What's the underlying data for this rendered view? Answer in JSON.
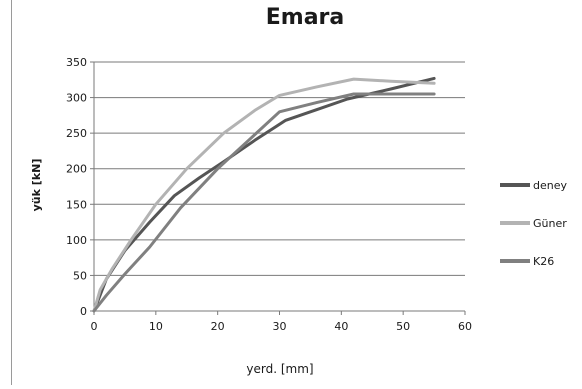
{
  "chart_data": {
    "type": "line",
    "title": "Emara",
    "xlabel": "yerd. [mm]",
    "ylabel": "yük [kN]",
    "xlim": [
      0,
      60
    ],
    "ylim": [
      0,
      350
    ],
    "xticks": [
      0,
      10,
      20,
      30,
      40,
      50,
      60
    ],
    "yticks": [
      0,
      50,
      100,
      150,
      200,
      250,
      300,
      350
    ],
    "grid": "horizontal",
    "legend_position": "right",
    "series": [
      {
        "name": "deney",
        "color": "#555555",
        "x": [
          0,
          2,
          5,
          9,
          13,
          17,
          21,
          26,
          31,
          36,
          41,
          48,
          55
        ],
        "y": [
          0,
          45,
          85,
          125,
          162,
          187,
          210,
          240,
          268,
          283,
          298,
          312,
          327
        ]
      },
      {
        "name": "Güner",
        "color": "#b3b3b3",
        "x": [
          0,
          1,
          3,
          6,
          10,
          15,
          21,
          26,
          30,
          36,
          42,
          48,
          55
        ],
        "y": [
          0,
          30,
          60,
          100,
          150,
          200,
          250,
          282,
          303,
          315,
          326,
          323,
          320
        ]
      },
      {
        "name": "K26",
        "color": "#808080",
        "x": [
          0,
          2,
          5,
          9,
          14,
          20,
          25,
          30,
          36,
          42,
          55
        ],
        "y": [
          0,
          22,
          52,
          90,
          145,
          200,
          240,
          280,
          293,
          305,
          305
        ]
      }
    ]
  }
}
